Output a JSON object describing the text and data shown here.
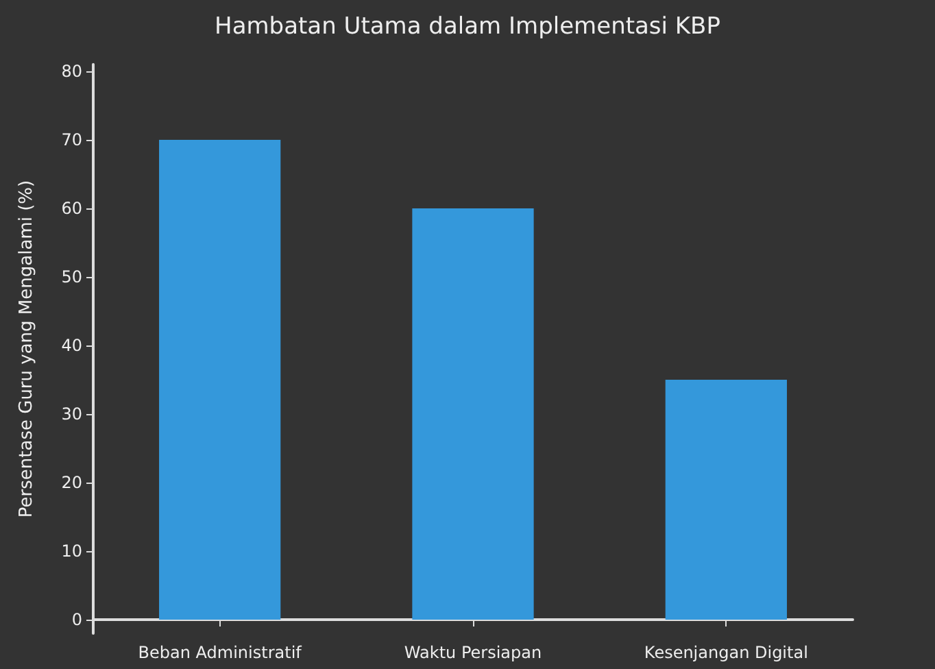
{
  "chart_data": {
    "type": "bar",
    "title": "Hambatan Utama dalam Implementasi KBP",
    "ylabel": "Persentase Guru yang Mengalami (%)",
    "categories": [
      "Beban Administratif",
      "Waktu Persiapan",
      "Kesenjangan Digital"
    ],
    "values": [
      70,
      60,
      35
    ],
    "color": "#3498db",
    "ylim": [
      -2,
      81
    ],
    "yticks": [
      0,
      10,
      20,
      30,
      40,
      50,
      60,
      70,
      80
    ],
    "grid": false
  }
}
